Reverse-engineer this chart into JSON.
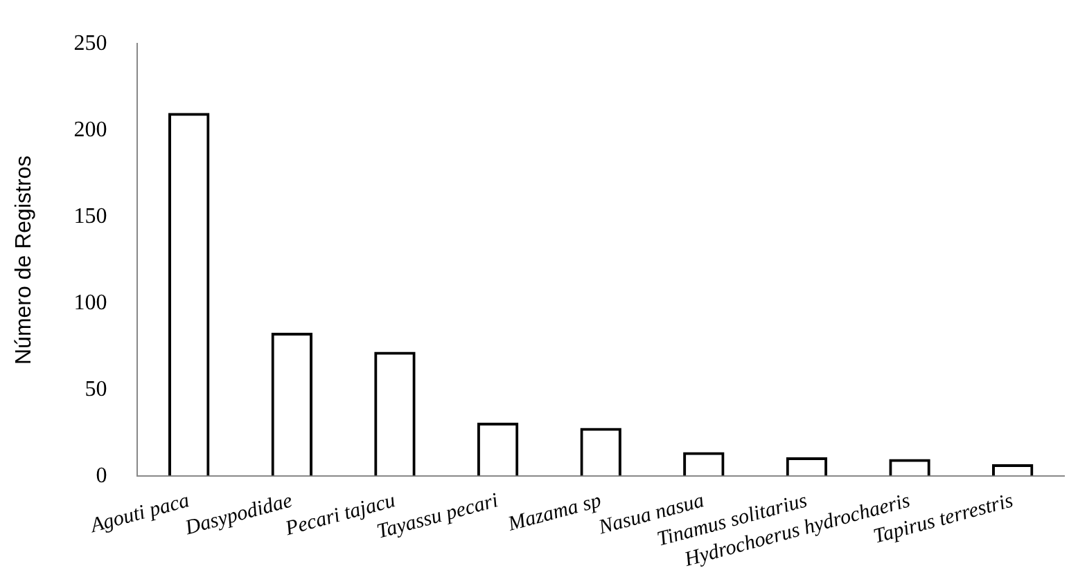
{
  "chart_data": {
    "type": "bar",
    "ylabel": "Número de Registros",
    "categories": [
      "Agouti paca",
      "Dasypodidae",
      "Pecari tajacu",
      "Tayassu pecari",
      "Mazama sp",
      "Nasua nasua",
      "Tinamus solitarius",
      "Hydrochoerus hydrochaeris",
      "Tapirus terrestris"
    ],
    "values": [
      210,
      83,
      72,
      31,
      28,
      14,
      11,
      10,
      7
    ],
    "color": "#000000",
    "ylim": [
      0,
      250
    ],
    "yticks": [
      0,
      50,
      100,
      150,
      200,
      250
    ],
    "grid": false,
    "legend": false
  }
}
